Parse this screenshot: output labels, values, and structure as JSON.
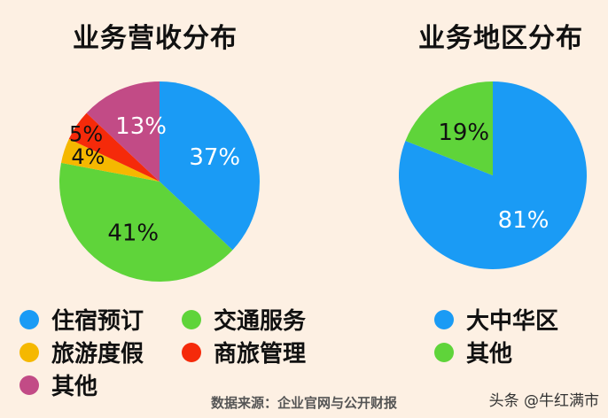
{
  "chart_data": [
    {
      "type": "pie",
      "title": "业务营收分布",
      "slices": [
        {
          "label": "住宿预订",
          "value": 37,
          "display": "37%",
          "color": "#1a9bf5"
        },
        {
          "label": "交通服务",
          "value": 41,
          "display": "41%",
          "color": "#5fd43a"
        },
        {
          "label": "旅游度假",
          "value": 4,
          "display": "4%",
          "color": "#f5b800"
        },
        {
          "label": "商旅管理",
          "value": 5,
          "display": "5%",
          "color": "#f52a0a"
        },
        {
          "label": "其他",
          "value": 13,
          "display": "13%",
          "color": "#c24b86"
        }
      ],
      "legend_position": "bottom"
    },
    {
      "type": "pie",
      "title": "业务地区分布",
      "slices": [
        {
          "label": "大中华区",
          "value": 81,
          "display": "81%",
          "color": "#1a9bf5"
        },
        {
          "label": "其他",
          "value": 19,
          "display": "19%",
          "color": "#5fd43a"
        }
      ],
      "legend_position": "bottom"
    }
  ],
  "footer": {
    "source": "数据来源：企业官网与公开财报",
    "watermark": "头条 @牛红满市"
  }
}
